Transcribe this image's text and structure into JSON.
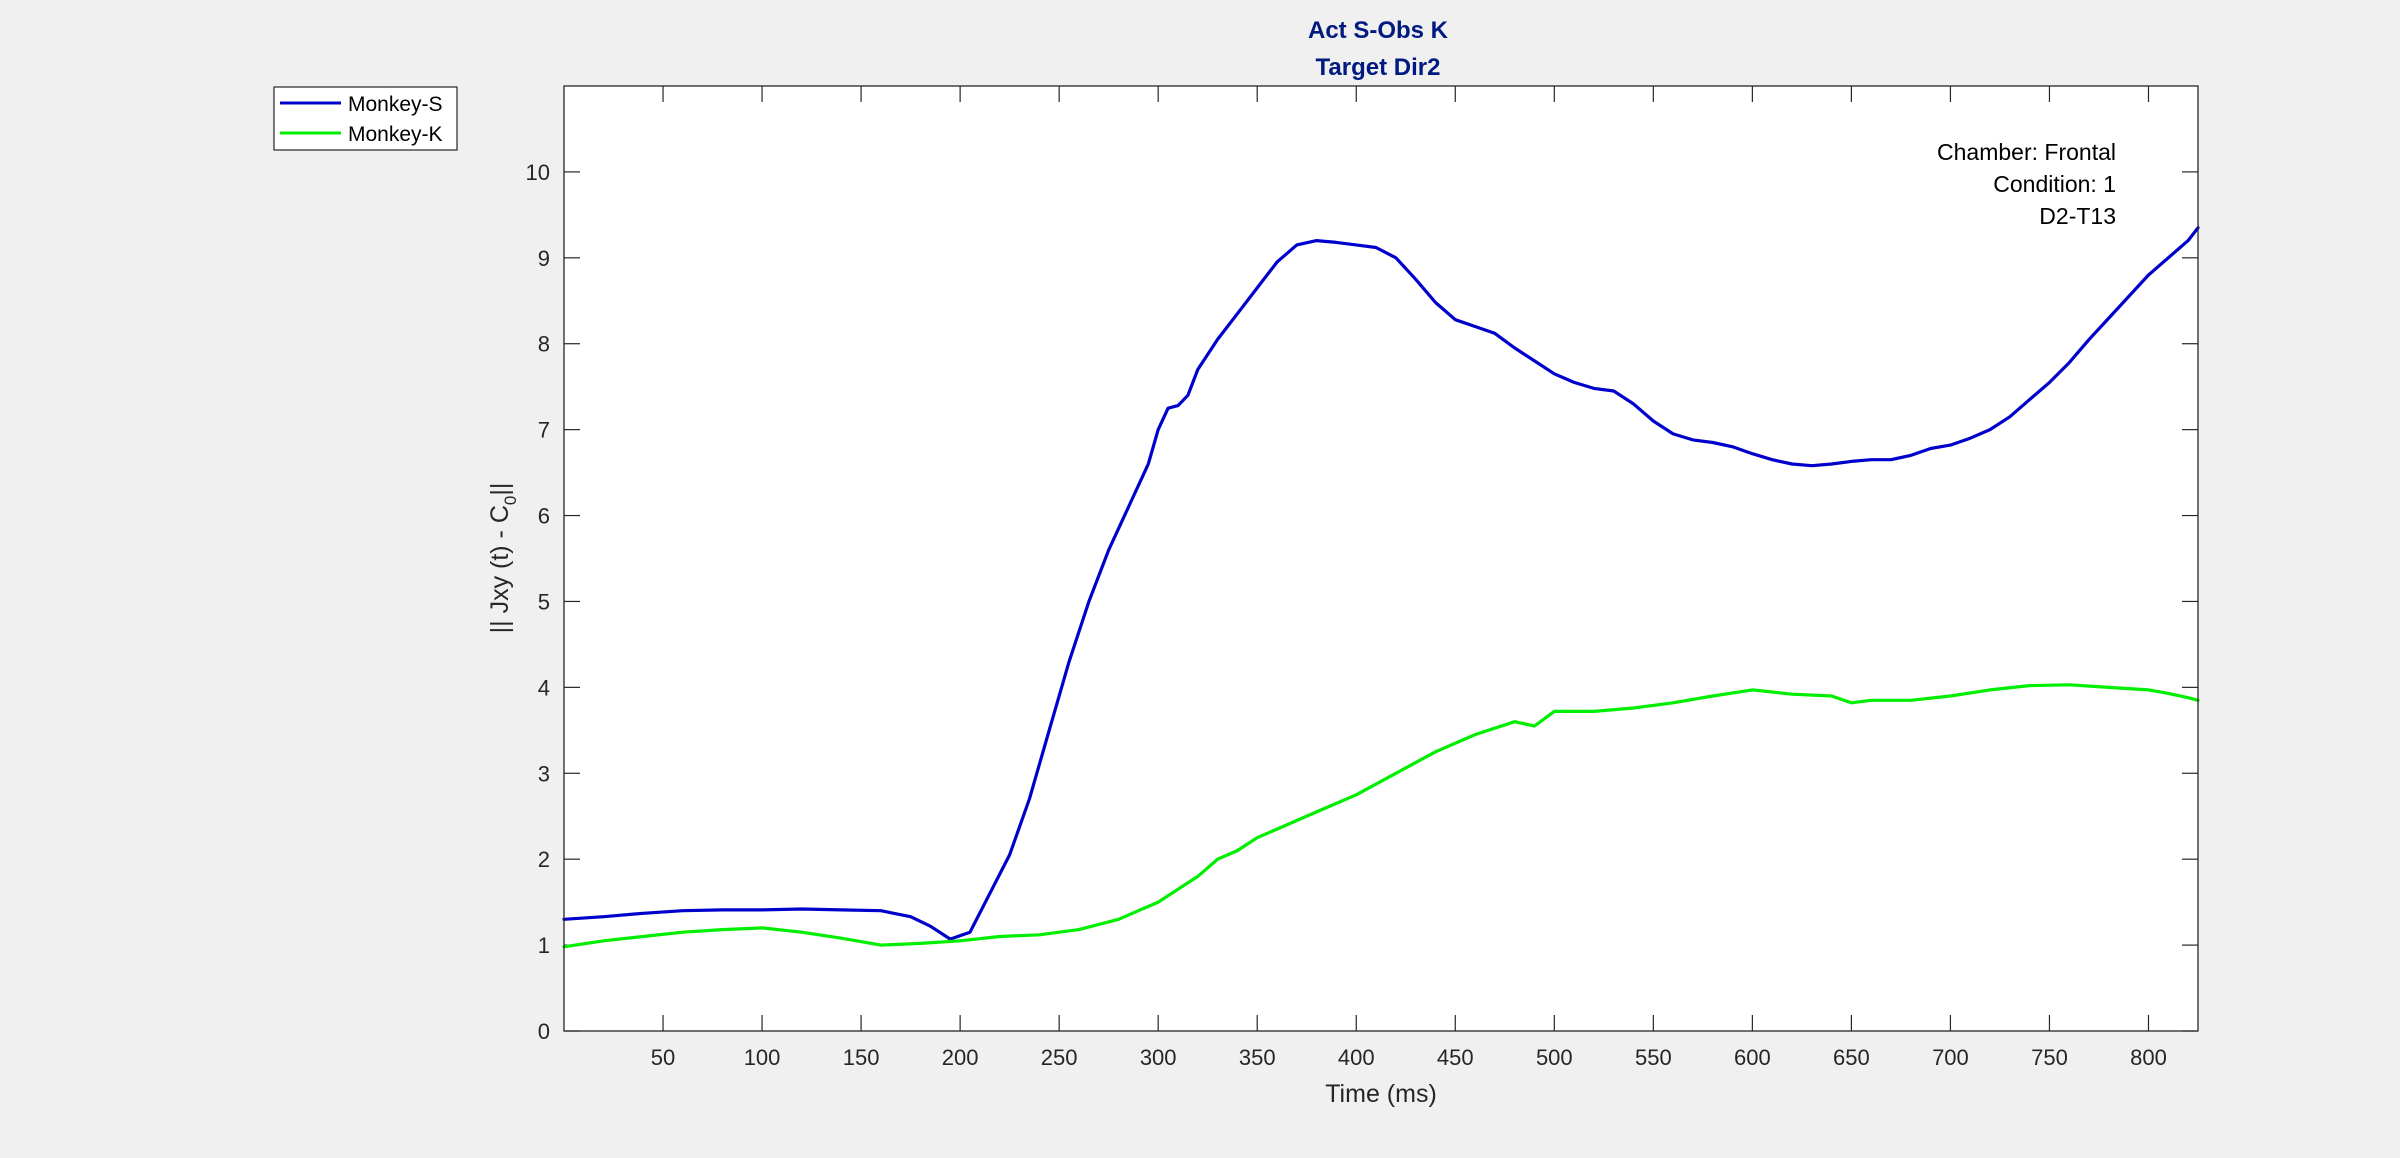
{
  "figure": {
    "background": "#f0f0f0",
    "axes_background": "#ffffff"
  },
  "chart_data": {
    "type": "line",
    "title": "Act S-Obs K",
    "subtitle": "Target Dir2",
    "xlabel": "Time (ms)",
    "ylabel_main": "|| Jxy (t) - C",
    "ylabel_sub": "0",
    "ylabel_end": "||",
    "xlim": [
      0,
      825
    ],
    "ylim": [
      0,
      11
    ],
    "xticks": [
      50,
      100,
      150,
      200,
      250,
      300,
      350,
      400,
      450,
      500,
      550,
      600,
      650,
      700,
      750,
      800
    ],
    "yticks": [
      0,
      1,
      2,
      3,
      4,
      5,
      6,
      7,
      8,
      9,
      10
    ],
    "grid": false,
    "legend_position": "outside-top-left",
    "annotation": [
      "Chamber: Frontal",
      "Condition: 1",
      "D2-T13"
    ],
    "series": [
      {
        "name": "Monkey-S",
        "color": "#0000cc",
        "x": [
          0,
          20,
          40,
          60,
          80,
          100,
          120,
          140,
          160,
          175,
          185,
          195,
          205,
          215,
          225,
          235,
          245,
          255,
          265,
          275,
          285,
          295,
          300,
          305,
          310,
          315,
          320,
          330,
          340,
          350,
          360,
          370,
          380,
          390,
          400,
          410,
          420,
          430,
          440,
          450,
          460,
          470,
          480,
          490,
          500,
          510,
          520,
          530,
          540,
          550,
          560,
          570,
          580,
          590,
          600,
          610,
          620,
          630,
          640,
          650,
          660,
          670,
          680,
          690,
          700,
          710,
          720,
          730,
          740,
          750,
          760,
          770,
          780,
          790,
          800,
          810,
          820,
          825
        ],
        "y": [
          1.3,
          1.33,
          1.37,
          1.4,
          1.41,
          1.41,
          1.42,
          1.41,
          1.4,
          1.33,
          1.22,
          1.07,
          1.15,
          1.6,
          2.05,
          2.7,
          3.5,
          4.3,
          5.0,
          5.6,
          6.1,
          6.6,
          7.0,
          7.25,
          7.28,
          7.4,
          7.7,
          8.05,
          8.35,
          8.65,
          8.95,
          9.15,
          9.2,
          9.18,
          9.15,
          9.12,
          9.0,
          8.75,
          8.48,
          8.28,
          8.2,
          8.12,
          7.95,
          7.8,
          7.65,
          7.55,
          7.48,
          7.45,
          7.3,
          7.1,
          6.95,
          6.88,
          6.85,
          6.8,
          6.72,
          6.65,
          6.6,
          6.58,
          6.6,
          6.63,
          6.65,
          6.65,
          6.7,
          6.78,
          6.82,
          6.9,
          7.0,
          7.15,
          7.35,
          7.55,
          7.78,
          8.05,
          8.3,
          8.55,
          8.8,
          9.0,
          9.2,
          9.35
        ]
      },
      {
        "name": "Monkey-K",
        "color": "#00ee00",
        "x": [
          0,
          20,
          40,
          60,
          80,
          100,
          120,
          140,
          160,
          180,
          200,
          220,
          240,
          260,
          280,
          300,
          320,
          330,
          340,
          350,
          360,
          380,
          400,
          420,
          440,
          460,
          480,
          490,
          500,
          520,
          540,
          560,
          580,
          600,
          620,
          640,
          650,
          660,
          680,
          700,
          720,
          740,
          760,
          780,
          800,
          810,
          820,
          825
        ],
        "y": [
          0.98,
          1.05,
          1.1,
          1.15,
          1.18,
          1.2,
          1.15,
          1.08,
          1.0,
          1.02,
          1.05,
          1.1,
          1.12,
          1.18,
          1.3,
          1.5,
          1.8,
          2.0,
          2.1,
          2.25,
          2.35,
          2.55,
          2.75,
          3.0,
          3.25,
          3.45,
          3.6,
          3.55,
          3.72,
          3.72,
          3.76,
          3.82,
          3.9,
          3.97,
          3.92,
          3.9,
          3.82,
          3.85,
          3.85,
          3.9,
          3.97,
          4.02,
          4.03,
          4.0,
          3.97,
          3.93,
          3.88,
          3.85
        ]
      }
    ]
  }
}
